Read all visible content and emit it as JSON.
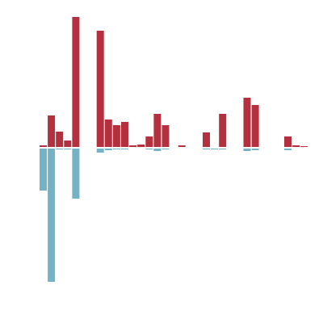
{
  "colors": {
    "positive": "#b3303f",
    "negative": "#74b2c6",
    "background": "#ffffff"
  },
  "chart_data": {
    "type": "bar",
    "title": "",
    "xlabel": "",
    "ylabel": "",
    "grid": false,
    "legend": "none",
    "ylim": [
      -165,
      161
    ],
    "series": [
      {
        "values": [
          2,
          39,
          19,
          8,
          161,
          0,
          0,
          144,
          34,
          27,
          31,
          2,
          3,
          13,
          41,
          27,
          0,
          2,
          0,
          0,
          18,
          0,
          41,
          0,
          0,
          61,
          52,
          0,
          0,
          0,
          13,
          2,
          1
        ]
      },
      {
        "values": [
          -52,
          -165,
          -1,
          -1,
          -62,
          0,
          0,
          -5,
          -2,
          -1,
          -1,
          0,
          0,
          -1,
          -3,
          -1,
          0,
          0,
          0,
          0,
          -1,
          -1,
          -1,
          0,
          0,
          -3,
          -2,
          0,
          0,
          0,
          -2,
          0,
          0
        ]
      }
    ]
  }
}
